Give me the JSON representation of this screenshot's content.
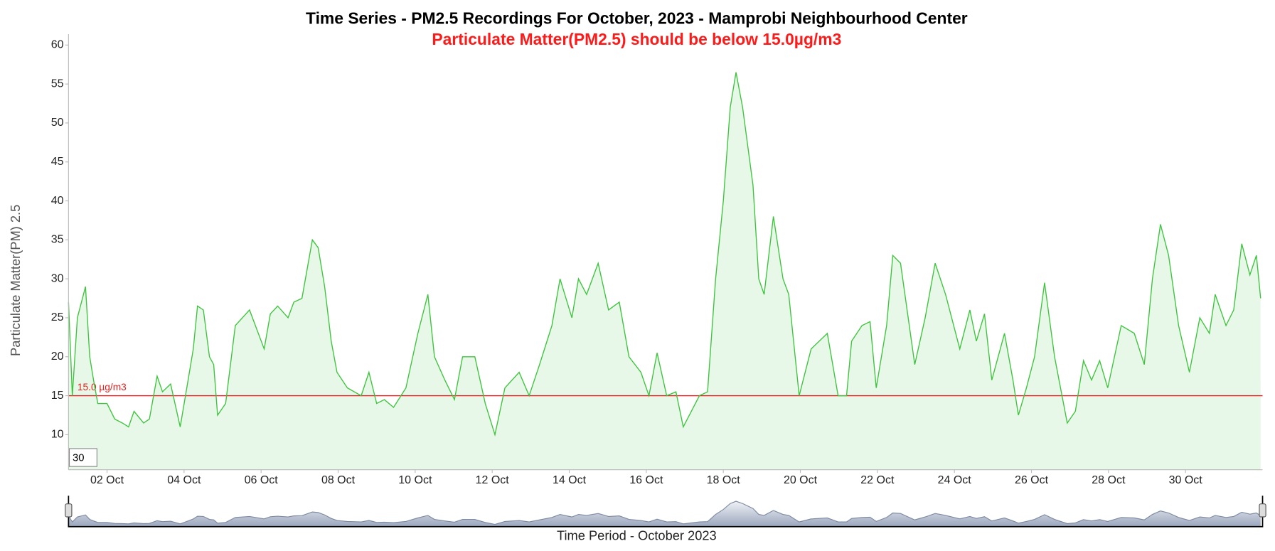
{
  "chart_data": {
    "type": "line",
    "title": "Time Series - PM2.5 Recordings For October, 2023 - Mamprobi Neighbourhood Center",
    "subtitle": "Particulate Matter(PM2.5) should be below 15.0µg/m3",
    "y_label": "Particulate Matter(PM) 2.5",
    "x_label": "Time Period - October 2023",
    "roll_period": 30,
    "threshold": {
      "value": 15,
      "label": "15.0 µg/m3",
      "color": "#e02020"
    },
    "color": "#3fc43f",
    "fill": "#e8f8e8",
    "xlim": [
      1,
      32
    ],
    "ylim": [
      5.5,
      61.4
    ],
    "yticks": [
      10,
      15,
      20,
      25,
      30,
      35,
      40,
      45,
      50,
      55,
      60
    ],
    "xticks": [
      {
        "value": 2,
        "label": "02 Oct"
      },
      {
        "value": 4,
        "label": "04 Oct"
      },
      {
        "value": 6,
        "label": "06 Oct"
      },
      {
        "value": 8,
        "label": "08 Oct"
      },
      {
        "value": 10,
        "label": "10 Oct"
      },
      {
        "value": 12,
        "label": "12 Oct"
      },
      {
        "value": 14,
        "label": "14 Oct"
      },
      {
        "value": 16,
        "label": "16 Oct"
      },
      {
        "value": 18,
        "label": "18 Oct"
      },
      {
        "value": 20,
        "label": "20 Oct"
      },
      {
        "value": 22,
        "label": "22 Oct"
      },
      {
        "value": 24,
        "label": "24 Oct"
      },
      {
        "value": 26,
        "label": "26 Oct"
      },
      {
        "value": 28,
        "label": "28 Oct"
      },
      {
        "value": 30,
        "label": "30 Oct"
      }
    ],
    "x": [
      1.0,
      1.1,
      1.23,
      1.44,
      1.55,
      1.65,
      1.76,
      2.0,
      2.2,
      2.4,
      2.56,
      2.7,
      2.95,
      3.1,
      3.3,
      3.44,
      3.65,
      3.9,
      4.07,
      4.24,
      4.35,
      4.5,
      4.66,
      4.77,
      4.87,
      5.08,
      5.33,
      5.7,
      6.08,
      6.24,
      6.43,
      6.7,
      6.85,
      7.06,
      7.33,
      7.48,
      7.65,
      7.82,
      7.97,
      8.24,
      8.6,
      8.8,
      9.0,
      9.2,
      9.44,
      9.76,
      10.07,
      10.33,
      10.5,
      10.77,
      11.02,
      11.23,
      11.55,
      11.82,
      12.07,
      12.33,
      12.7,
      12.96,
      13.23,
      13.55,
      13.76,
      14.07,
      14.24,
      14.45,
      14.75,
      15.02,
      15.3,
      15.55,
      15.86,
      16.07,
      16.28,
      16.53,
      16.77,
      16.96,
      17.17,
      17.38,
      17.59,
      17.8,
      18.0,
      18.18,
      18.33,
      18.5,
      18.77,
      18.92,
      19.06,
      19.3,
      19.55,
      19.7,
      19.97,
      20.28,
      20.7,
      20.98,
      21.2,
      21.33,
      21.6,
      21.81,
      21.97,
      22.24,
      22.4,
      22.6,
      22.97,
      23.24,
      23.5,
      23.77,
      24.14,
      24.4,
      24.57,
      24.78,
      24.97,
      25.3,
      25.52,
      25.66,
      25.87,
      26.08,
      26.34,
      26.6,
      26.93,
      27.14,
      27.35,
      27.56,
      27.77,
      27.98,
      28.33,
      28.67,
      28.93,
      29.14,
      29.35,
      29.56,
      29.82,
      30.1,
      30.37,
      30.62,
      30.77,
      31.05,
      31.25,
      31.46,
      31.67,
      31.84,
      31.95
    ],
    "values": [
      27,
      15,
      25,
      29,
      20,
      17,
      14,
      14,
      12,
      11.5,
      11,
      13,
      11.5,
      12,
      17.5,
      15.5,
      16.5,
      11,
      16,
      21,
      26.5,
      26,
      20,
      19,
      12.5,
      14,
      24,
      26,
      21,
      25.5,
      26.5,
      25,
      27,
      27.5,
      35,
      34,
      29,
      22,
      18,
      16,
      15,
      18,
      14,
      14.5,
      13.5,
      16,
      23,
      28,
      20,
      17,
      14.5,
      20,
      20,
      14,
      10,
      16,
      18,
      15,
      19,
      24,
      30,
      25,
      30,
      28,
      32,
      26,
      27,
      20,
      18,
      15,
      20.5,
      15,
      15.5,
      11,
      13,
      15,
      15.5,
      30,
      40,
      52,
      56.5,
      52,
      42,
      30,
      28,
      38,
      30,
      28,
      15,
      21,
      23,
      15,
      15,
      22,
      24,
      24.5,
      16,
      24,
      33,
      32,
      19,
      25,
      32,
      28,
      21,
      26,
      22,
      25.5,
      17,
      23,
      17,
      12.5,
      16,
      20,
      29.5,
      20,
      11.5,
      13,
      19.5,
      17,
      19.5,
      16,
      24,
      23,
      19,
      30,
      37,
      33,
      24,
      18,
      25,
      23,
      28,
      24,
      26,
      34.5,
      30.5,
      33,
      27.5
    ]
  }
}
